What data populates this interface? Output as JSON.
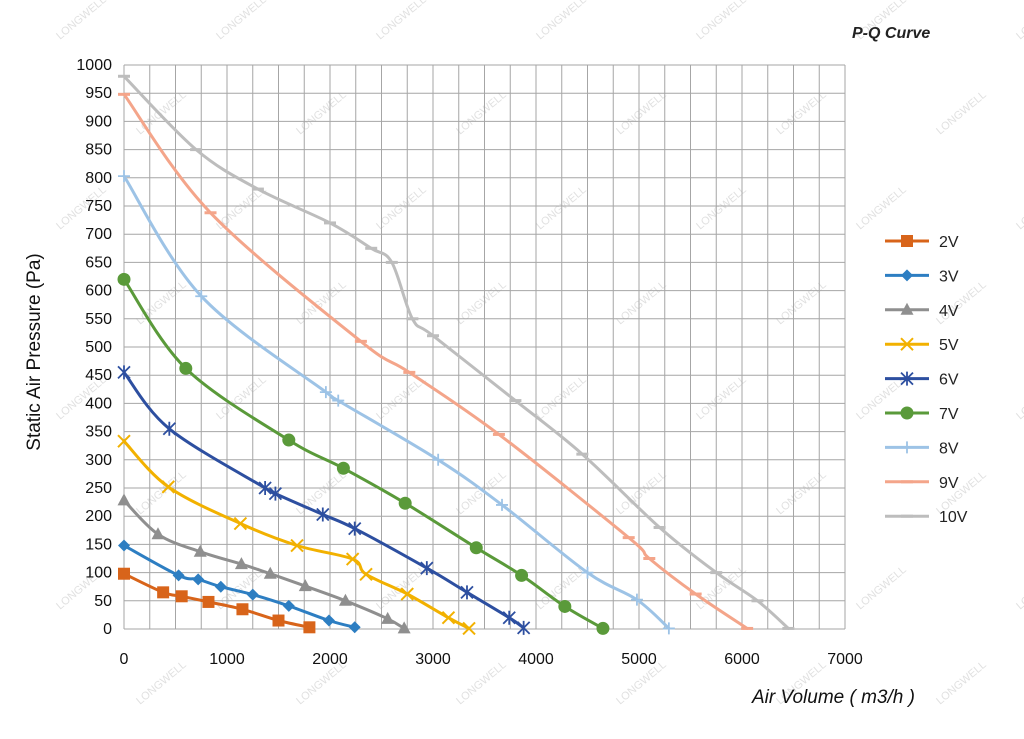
{
  "chart_data": {
    "type": "line",
    "title": "P-Q Curve",
    "xlabel": "Air Volume ( m3/h )",
    "ylabel": "Static Air Pressure  (Pa)",
    "xlim": [
      0,
      7000
    ],
    "ylim": [
      0,
      1000
    ],
    "x_ticks": [
      "0",
      "1000",
      "2000",
      "3000",
      "4000",
      "5000",
      "6000",
      "7000"
    ],
    "y_ticks": [
      "0",
      "50",
      "100",
      "150",
      "200",
      "250",
      "300",
      "350",
      "400",
      "450",
      "500",
      "550",
      "600",
      "650",
      "700",
      "750",
      "800",
      "850",
      "900",
      "950",
      "1000"
    ],
    "grid": true,
    "legend_position": "right",
    "watermark": "LONGWELL",
    "series": [
      {
        "name": "2V",
        "color": "#d8641a",
        "marker": "square",
        "points": [
          [
            0,
            98
          ],
          [
            380,
            65
          ],
          [
            560,
            58
          ],
          [
            820,
            48
          ],
          [
            1150,
            35
          ],
          [
            1500,
            15
          ],
          [
            1800,
            3
          ]
        ]
      },
      {
        "name": "3V",
        "color": "#2d7ec2",
        "marker": "diamond",
        "points": [
          [
            0,
            148
          ],
          [
            530,
            95
          ],
          [
            720,
            88
          ],
          [
            940,
            75
          ],
          [
            1250,
            61
          ],
          [
            1600,
            41
          ],
          [
            1990,
            15
          ],
          [
            2240,
            3
          ]
        ]
      },
      {
        "name": "4V",
        "color": "#8f8f8f",
        "marker": "triangle",
        "points": [
          [
            0,
            228
          ],
          [
            330,
            168
          ],
          [
            740,
            137
          ],
          [
            1140,
            115
          ],
          [
            1420,
            98
          ],
          [
            1760,
            76
          ],
          [
            2150,
            50
          ],
          [
            2560,
            18
          ],
          [
            2720,
            1
          ]
        ]
      },
      {
        "name": "5V",
        "color": "#f2b100",
        "marker": "x",
        "points": [
          [
            0,
            333
          ],
          [
            430,
            252
          ],
          [
            1130,
            187
          ],
          [
            1680,
            148
          ],
          [
            2220,
            124
          ],
          [
            2350,
            97
          ],
          [
            2750,
            62
          ],
          [
            3150,
            20
          ],
          [
            3350,
            1
          ]
        ]
      },
      {
        "name": "6V",
        "color": "#2d4fa0",
        "marker": "star",
        "points": [
          [
            0,
            455
          ],
          [
            440,
            355
          ],
          [
            1370,
            250
          ],
          [
            1470,
            240
          ],
          [
            1930,
            203
          ],
          [
            2240,
            178
          ],
          [
            2940,
            108
          ],
          [
            3330,
            65
          ],
          [
            3740,
            20
          ],
          [
            3880,
            2
          ]
        ]
      },
      {
        "name": "7V",
        "color": "#5a9a3a",
        "marker": "circle",
        "points": [
          [
            0,
            620
          ],
          [
            600,
            462
          ],
          [
            1600,
            335
          ],
          [
            2130,
            285
          ],
          [
            2730,
            223
          ],
          [
            3420,
            144
          ],
          [
            3860,
            95
          ],
          [
            4280,
            40
          ],
          [
            4650,
            1
          ]
        ]
      },
      {
        "name": "8V",
        "color": "#9dc3e6",
        "marker": "plus",
        "points": [
          [
            0,
            803
          ],
          [
            750,
            590
          ],
          [
            1960,
            420
          ],
          [
            2080,
            405
          ],
          [
            3050,
            300
          ],
          [
            3670,
            220
          ],
          [
            4500,
            100
          ],
          [
            4980,
            52
          ],
          [
            5290,
            1
          ]
        ]
      },
      {
        "name": "9V",
        "color": "#f4a58a",
        "marker": "dash",
        "points": [
          [
            0,
            948
          ],
          [
            840,
            738
          ],
          [
            2300,
            510
          ],
          [
            2770,
            455
          ],
          [
            3640,
            345
          ],
          [
            4900,
            162
          ],
          [
            5100,
            125
          ],
          [
            5550,
            62
          ],
          [
            6050,
            1
          ]
        ]
      },
      {
        "name": "10V",
        "color": "#bdbdbd",
        "marker": "dash",
        "points": [
          [
            0,
            980
          ],
          [
            700,
            850
          ],
          [
            1300,
            780
          ],
          [
            2000,
            720
          ],
          [
            2400,
            675
          ],
          [
            2600,
            650
          ],
          [
            2800,
            550
          ],
          [
            3000,
            520
          ],
          [
            3800,
            405
          ],
          [
            4450,
            310
          ],
          [
            5200,
            180
          ],
          [
            5750,
            100
          ],
          [
            6150,
            50
          ],
          [
            6450,
            1
          ]
        ]
      }
    ]
  }
}
